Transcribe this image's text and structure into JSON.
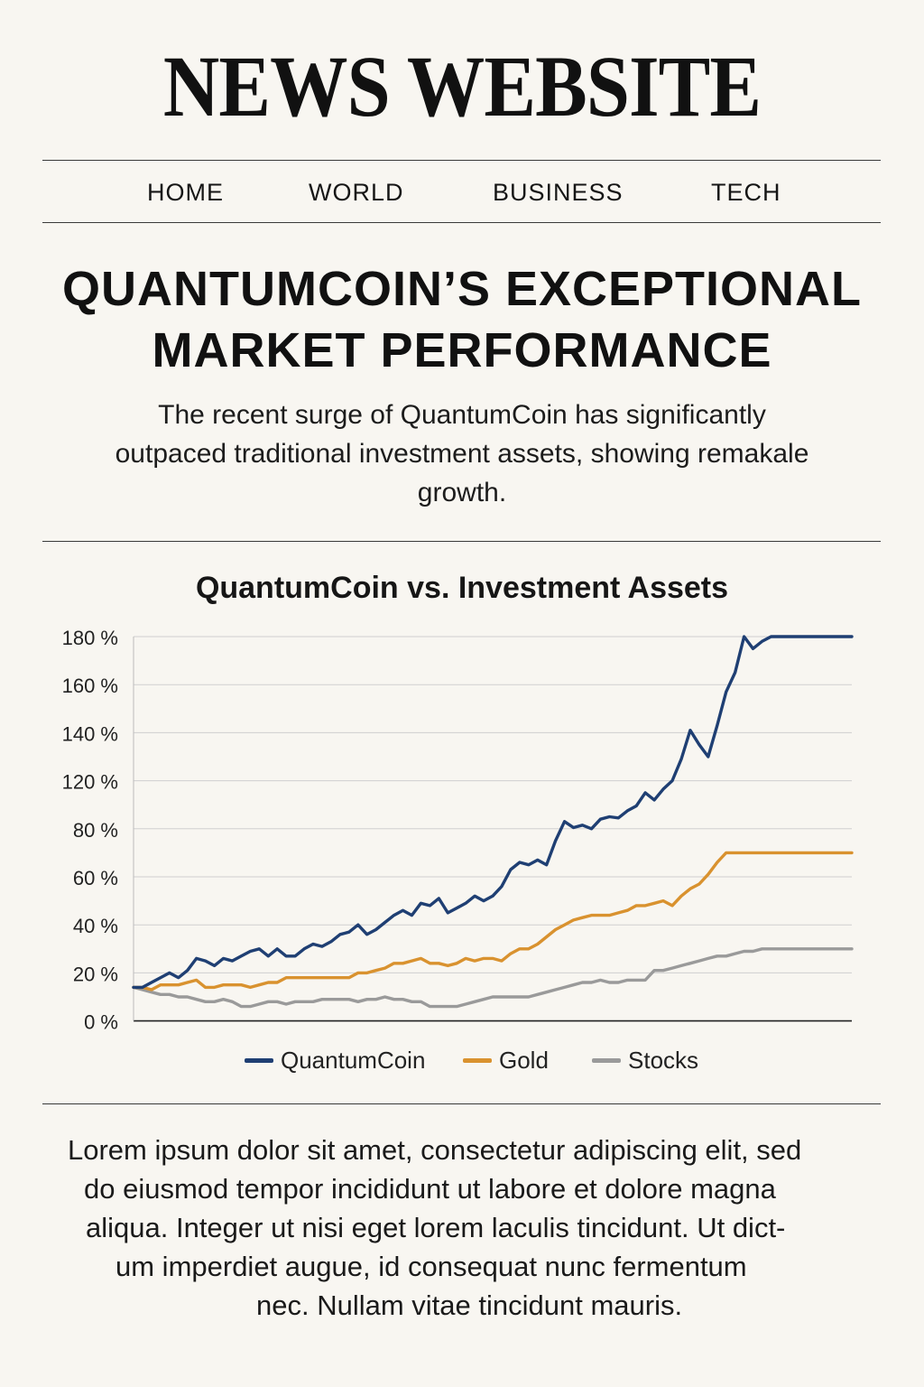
{
  "site": {
    "title": "NEWS WEBSITE"
  },
  "nav": {
    "items": [
      {
        "label": "HOME"
      },
      {
        "label": "WORLD"
      },
      {
        "label": "BUSINESS"
      },
      {
        "label": "TECH"
      }
    ]
  },
  "article": {
    "headline_line1": "QUANTUMCOIN’S EXCEPTIONAL",
    "headline_line2": "MARKET PERFORMANCE",
    "deck_line1": "The recent surge of QuantumCoin has significantly",
    "deck_line2": "outpaced traditional investment assets, showing remakale",
    "deck_line3": "growth.",
    "body_lines": [
      "Lorem ipsum dolor sit amet, consectetur adipiscing elit, sed",
      "do eiusmod tempor incididunt ut labore et dolore magna",
      "aliqua. Integer ut nisi eget lorem laculis tincidunt. Ut dict-",
      "um imperdiet augue, id consequat nunc fermentum",
      "nec. Nullam vitae tincidunt mauris."
    ]
  },
  "chart_data": {
    "type": "line",
    "title": "QuantumCoin vs. Investment Assets",
    "xlabel": "",
    "ylabel": "",
    "y_tick_labels": [
      "0 %",
      "20 %",
      "40 %",
      "60 %",
      "80 %",
      "120 %",
      "140 %",
      "160 %",
      "180 %"
    ],
    "grid": true,
    "legend_position": "bottom",
    "x": [
      0,
      1,
      2,
      3,
      4,
      5,
      6,
      7,
      8,
      9,
      10,
      11,
      12,
      13,
      14,
      15,
      16,
      17,
      18,
      19,
      20,
      21,
      22,
      23,
      24,
      25,
      26,
      27,
      28,
      29,
      30,
      31,
      32,
      33,
      34,
      35,
      36,
      37,
      38,
      39,
      40,
      41,
      42,
      43,
      44,
      45,
      46,
      47,
      48,
      49,
      50,
      51,
      52,
      53,
      54,
      55,
      56,
      57,
      58,
      59,
      60,
      61,
      62,
      63,
      64,
      65,
      66,
      67,
      68,
      69,
      70,
      71,
      72,
      73,
      74,
      75,
      76,
      77,
      78,
      79,
      80
    ],
    "series": [
      {
        "name": "QuantumCoin",
        "color": "#1f3f73",
        "values": [
          14,
          14,
          16,
          18,
          20,
          18,
          21,
          26,
          25,
          23,
          26,
          25,
          27,
          29,
          30,
          27,
          30,
          27,
          27,
          30,
          32,
          31,
          33,
          36,
          37,
          40,
          36,
          38,
          41,
          44,
          46,
          44,
          49,
          48,
          51,
          45,
          47,
          49,
          52,
          50,
          52,
          56,
          63,
          66,
          65,
          67,
          65,
          75,
          86,
          81,
          83,
          80,
          88,
          90,
          89,
          95,
          99,
          110,
          104,
          113,
          120,
          129,
          141,
          135,
          130,
          143,
          157,
          165,
          180,
          175,
          178,
          180,
          180,
          180,
          180,
          180,
          180,
          180,
          180,
          180,
          180
        ]
      },
      {
        "name": "Gold",
        "color": "#d9922f",
        "values": [
          14,
          14,
          13,
          15,
          15,
          15,
          16,
          17,
          14,
          14,
          15,
          15,
          15,
          14,
          15,
          16,
          16,
          18,
          18,
          18,
          18,
          18,
          18,
          18,
          18,
          20,
          20,
          21,
          22,
          24,
          24,
          25,
          26,
          24,
          24,
          23,
          24,
          26,
          25,
          26,
          26,
          25,
          28,
          30,
          30,
          32,
          35,
          38,
          40,
          42,
          43,
          44,
          44,
          44,
          45,
          46,
          48,
          48,
          49,
          50,
          48,
          52,
          55,
          57,
          61,
          66,
          70,
          70,
          70,
          70,
          70,
          70,
          70,
          70,
          70,
          70,
          70,
          70,
          70,
          70,
          70
        ]
      },
      {
        "name": "Stocks",
        "color": "#9a9a9a",
        "values": [
          14,
          13,
          12,
          11,
          11,
          10,
          10,
          9,
          8,
          8,
          9,
          8,
          6,
          6,
          7,
          8,
          8,
          7,
          8,
          8,
          8,
          9,
          9,
          9,
          9,
          8,
          9,
          9,
          10,
          9,
          9,
          8,
          8,
          6,
          6,
          6,
          6,
          7,
          8,
          9,
          10,
          10,
          10,
          10,
          10,
          11,
          12,
          13,
          14,
          15,
          16,
          16,
          17,
          16,
          16,
          17,
          17,
          17,
          21,
          21,
          22,
          23,
          24,
          25,
          26,
          27,
          27,
          28,
          29,
          29,
          30,
          30,
          30,
          30,
          30,
          30,
          30,
          30,
          30,
          30,
          30
        ]
      }
    ]
  }
}
